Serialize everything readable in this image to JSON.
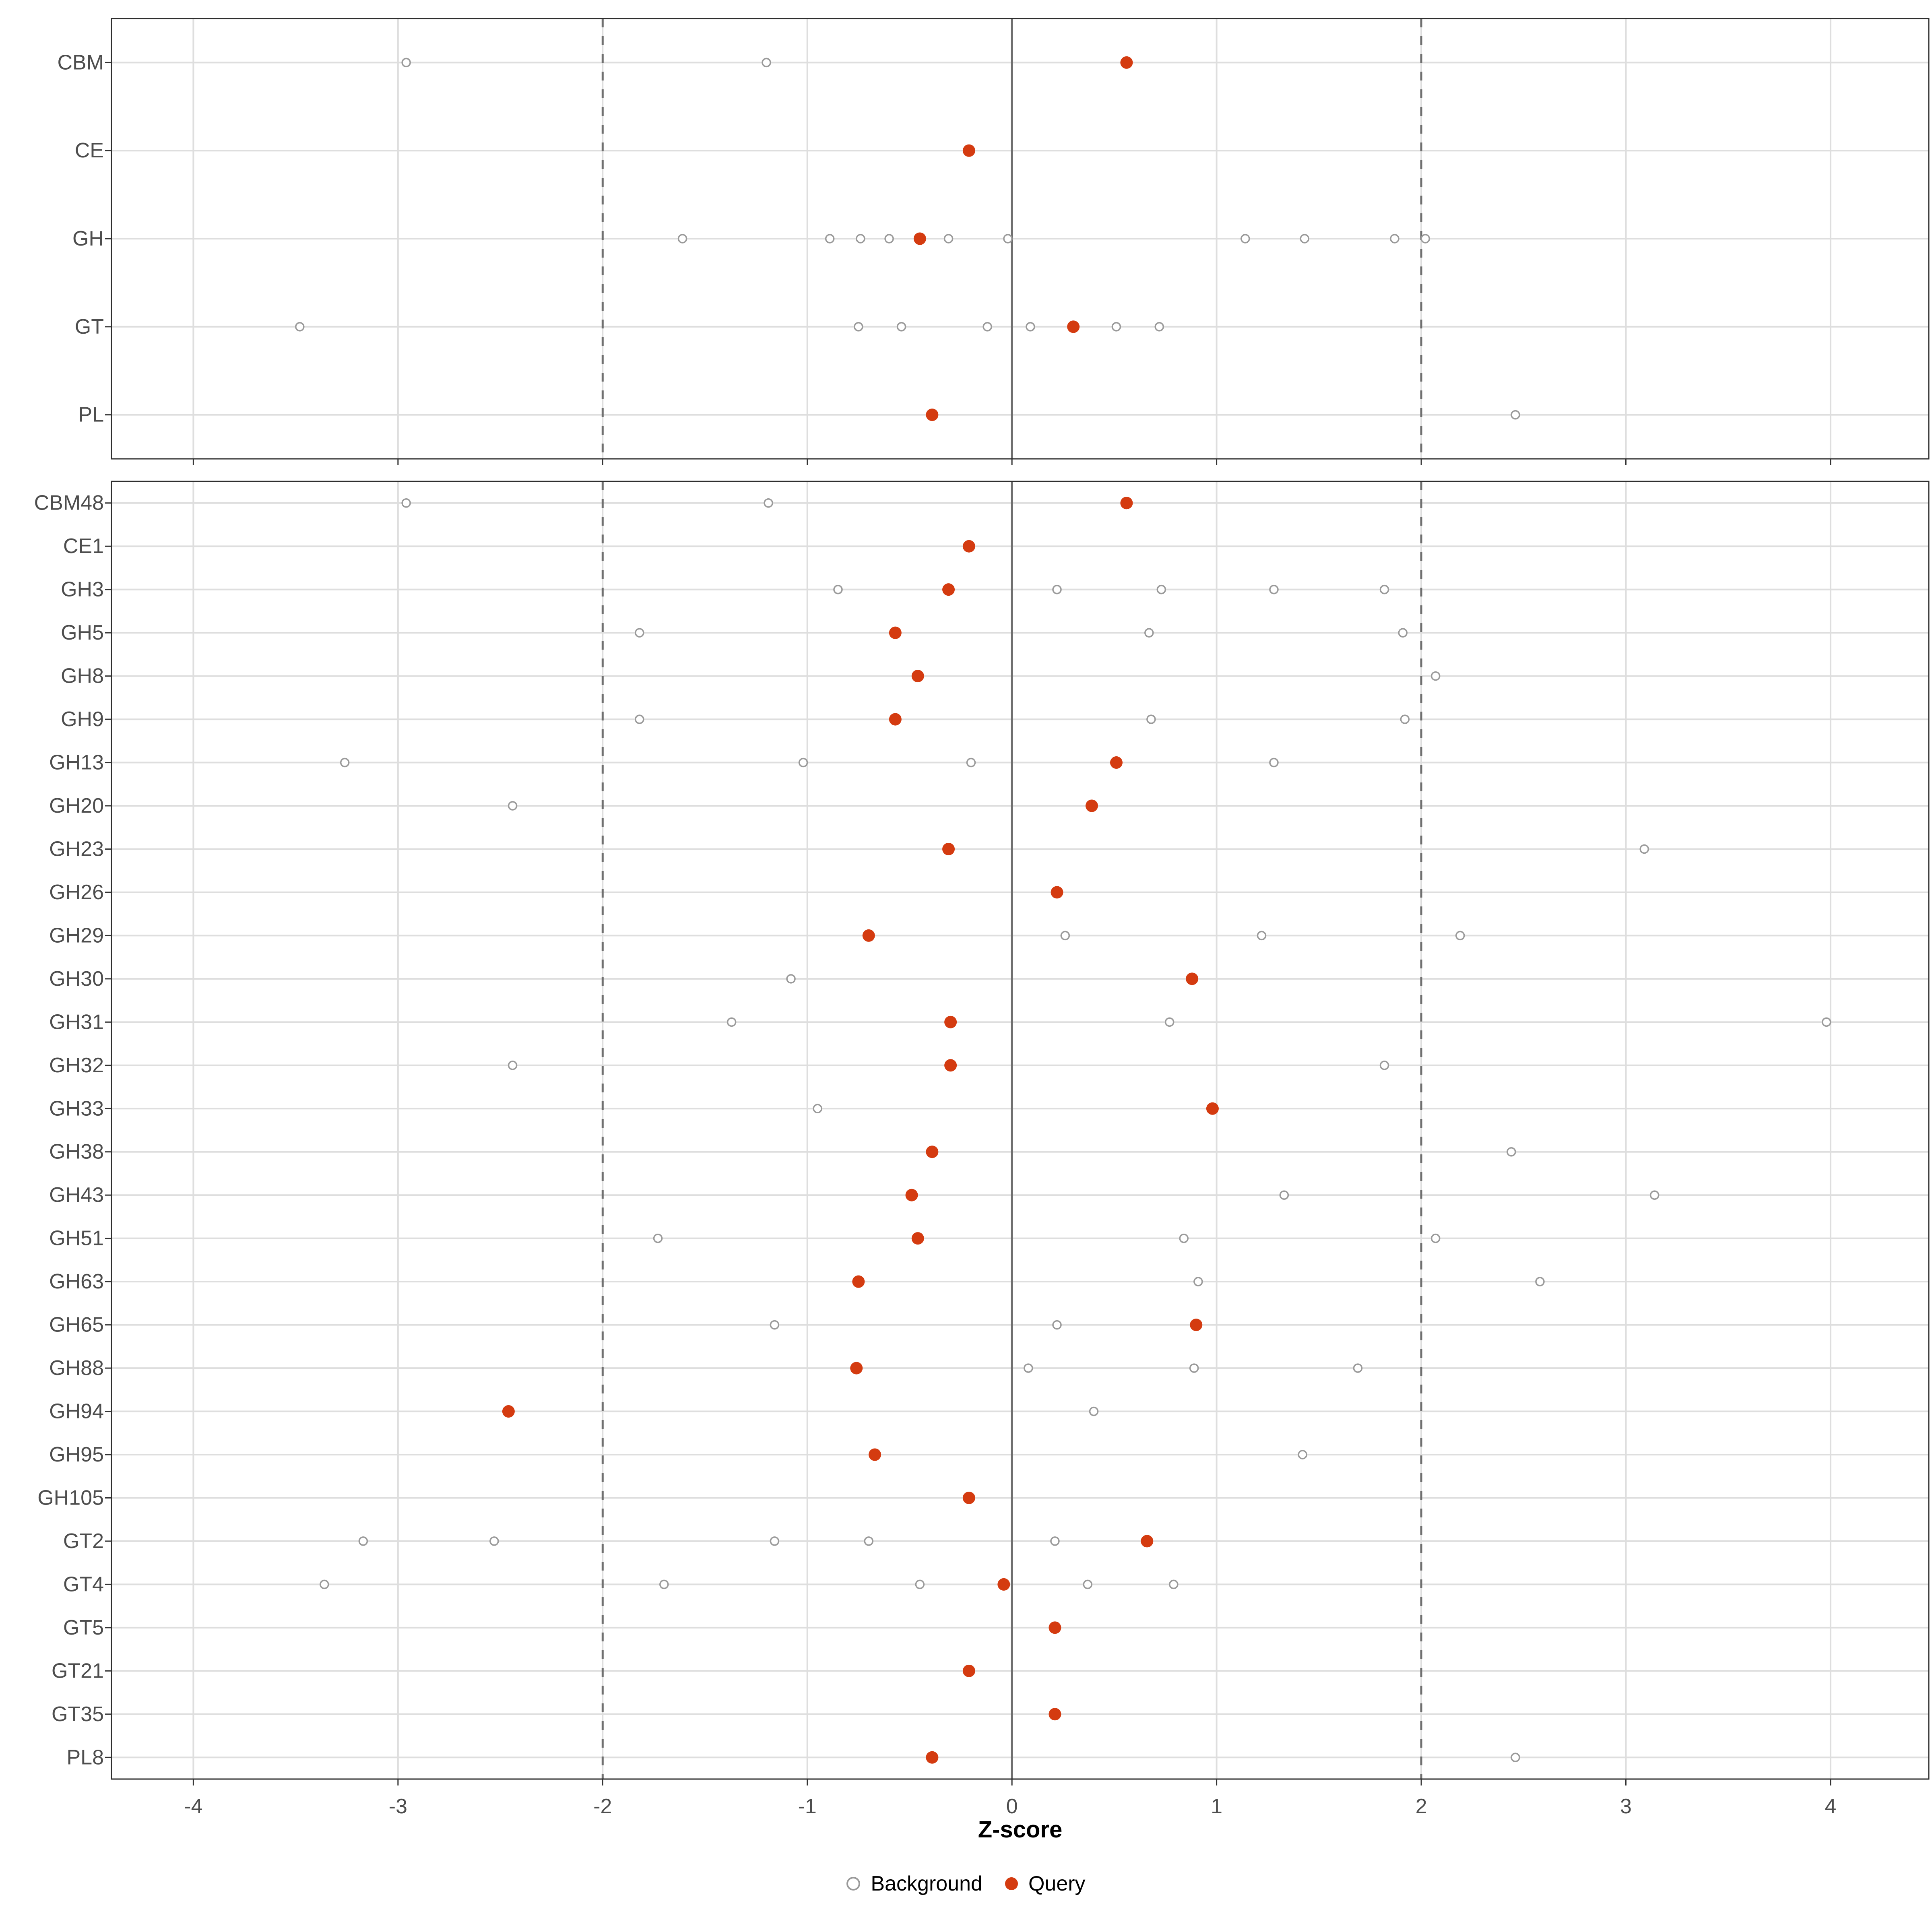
{
  "chart_data": {
    "type": "scatter",
    "title": "",
    "xlabel": "Z-score",
    "x_axis": {
      "range": [
        -4.4,
        4.48
      ],
      "ticks": [
        -4,
        -3,
        -2,
        -1,
        0,
        1,
        2,
        3,
        4
      ],
      "tick_labels": [
        "-4",
        "-3",
        "-2",
        "-1",
        "0",
        "1",
        "2",
        "3",
        "4"
      ]
    },
    "reference_lines": {
      "solid_zero": 0,
      "dashed": [
        -2,
        2
      ]
    },
    "legend": [
      {
        "label": "Background",
        "type": "open"
      },
      {
        "label": "Query",
        "type": "filled"
      }
    ],
    "colors": {
      "query": "#d43b10",
      "background_stroke": "#9a9a9a",
      "gridline": "#dedede",
      "ref_line": "#6f6f6f",
      "panel_border": "#2e2e2e",
      "axis_text": "#4d4d4d",
      "tick_mark": "#333333"
    },
    "panels": [
      {
        "name": "summary",
        "categories": [
          {
            "label": "CBM",
            "background": [
              -2.96,
              -1.2
            ],
            "query": [
              0.56
            ]
          },
          {
            "label": "CE",
            "background": [],
            "query": [
              -0.21
            ]
          },
          {
            "label": "GH",
            "background": [
              -1.61,
              -0.89,
              -0.74,
              -0.6,
              -0.31,
              -0.02,
              1.14,
              1.43,
              1.87,
              2.02
            ],
            "query": [
              -0.45
            ]
          },
          {
            "label": "GT",
            "background": [
              -3.48,
              -0.75,
              -0.54,
              -0.12,
              0.09,
              0.51,
              0.72
            ],
            "query": [
              0.3
            ]
          },
          {
            "label": "PL",
            "background": [
              2.46
            ],
            "query": [
              -0.39
            ]
          }
        ]
      },
      {
        "name": "families",
        "categories": [
          {
            "label": "CBM48",
            "background": [
              -2.96,
              -1.19
            ],
            "query": [
              0.56
            ]
          },
          {
            "label": "CE1",
            "background": [],
            "query": [
              -0.21
            ]
          },
          {
            "label": "GH3",
            "background": [
              -0.85,
              0.22,
              0.73,
              1.28,
              1.82
            ],
            "query": [
              -0.31
            ]
          },
          {
            "label": "GH5",
            "background": [
              -1.82,
              0.67,
              1.91
            ],
            "query": [
              -0.57
            ]
          },
          {
            "label": "GH8",
            "background": [
              2.07
            ],
            "query": [
              -0.46
            ]
          },
          {
            "label": "GH9",
            "background": [
              -1.82,
              0.68,
              1.92
            ],
            "query": [
              -0.57
            ]
          },
          {
            "label": "GH13",
            "background": [
              -3.26,
              -1.02,
              -0.2,
              1.28
            ],
            "query": [
              0.51
            ]
          },
          {
            "label": "GH20",
            "background": [
              -2.44
            ],
            "query": [
              0.39
            ]
          },
          {
            "label": "GH23",
            "background": [
              3.09
            ],
            "query": [
              -0.31
            ]
          },
          {
            "label": "GH26",
            "background": [],
            "query": [
              0.22
            ]
          },
          {
            "label": "GH29",
            "background": [
              0.26,
              1.22,
              2.19
            ],
            "query": [
              -0.7
            ]
          },
          {
            "label": "GH30",
            "background": [
              -1.08
            ],
            "query": [
              0.88
            ]
          },
          {
            "label": "GH31",
            "background": [
              -1.37,
              0.77,
              3.98
            ],
            "query": [
              -0.3
            ]
          },
          {
            "label": "GH32",
            "background": [
              -2.44,
              1.82
            ],
            "query": [
              -0.3
            ]
          },
          {
            "label": "GH33",
            "background": [
              -0.95
            ],
            "query": [
              0.98
            ]
          },
          {
            "label": "GH38",
            "background": [
              2.44
            ],
            "query": [
              -0.39
            ]
          },
          {
            "label": "GH43",
            "background": [
              1.33,
              3.14
            ],
            "query": [
              -0.49
            ]
          },
          {
            "label": "GH51",
            "background": [
              -1.73,
              0.84,
              2.07
            ],
            "query": [
              -0.46
            ]
          },
          {
            "label": "GH63",
            "background": [
              0.91,
              2.58
            ],
            "query": [
              -0.75
            ]
          },
          {
            "label": "GH65",
            "background": [
              -1.16,
              0.22
            ],
            "query": [
              0.9
            ]
          },
          {
            "label": "GH88",
            "background": [
              0.08,
              0.89,
              1.69
            ],
            "query": [
              -0.76
            ]
          },
          {
            "label": "GH94",
            "background": [
              0.4
            ],
            "query": [
              -2.46
            ]
          },
          {
            "label": "GH95",
            "background": [
              1.42
            ],
            "query": [
              -0.67
            ]
          },
          {
            "label": "GH105",
            "background": [],
            "query": [
              -0.21
            ]
          },
          {
            "label": "GT2",
            "background": [
              -3.17,
              -2.53,
              -1.16,
              -0.7,
              0.21
            ],
            "query": [
              0.66
            ]
          },
          {
            "label": "GT4",
            "background": [
              -3.36,
              -1.7,
              -0.45,
              0.37,
              0.79
            ],
            "query": [
              -0.04
            ]
          },
          {
            "label": "GT5",
            "background": [],
            "query": [
              0.21
            ]
          },
          {
            "label": "GT21",
            "background": [],
            "query": [
              -0.21
            ]
          },
          {
            "label": "GT35",
            "background": [],
            "query": [
              0.21
            ]
          },
          {
            "label": "PL8",
            "background": [
              2.46
            ],
            "query": [
              -0.39
            ]
          }
        ]
      }
    ]
  }
}
